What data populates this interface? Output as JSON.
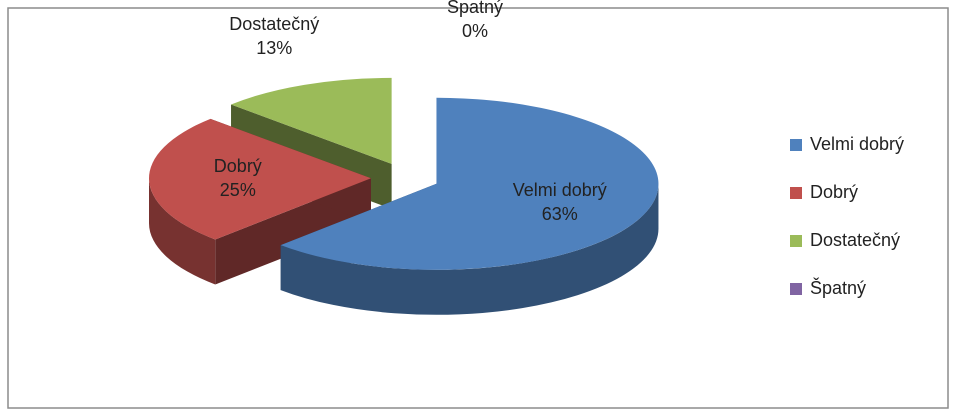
{
  "chart_data": {
    "type": "pie3d",
    "categories": [
      "Velmi dobrý",
      "Dobrý",
      "Dostatečný",
      "Špatný"
    ],
    "values": [
      63,
      25,
      13,
      0
    ],
    "value_labels": [
      "63%",
      "25%",
      "13%",
      "0%"
    ],
    "colors": [
      "#4f81bd",
      "#c0504d",
      "#9bbb59",
      "#8064a2"
    ],
    "legend": "right"
  }
}
